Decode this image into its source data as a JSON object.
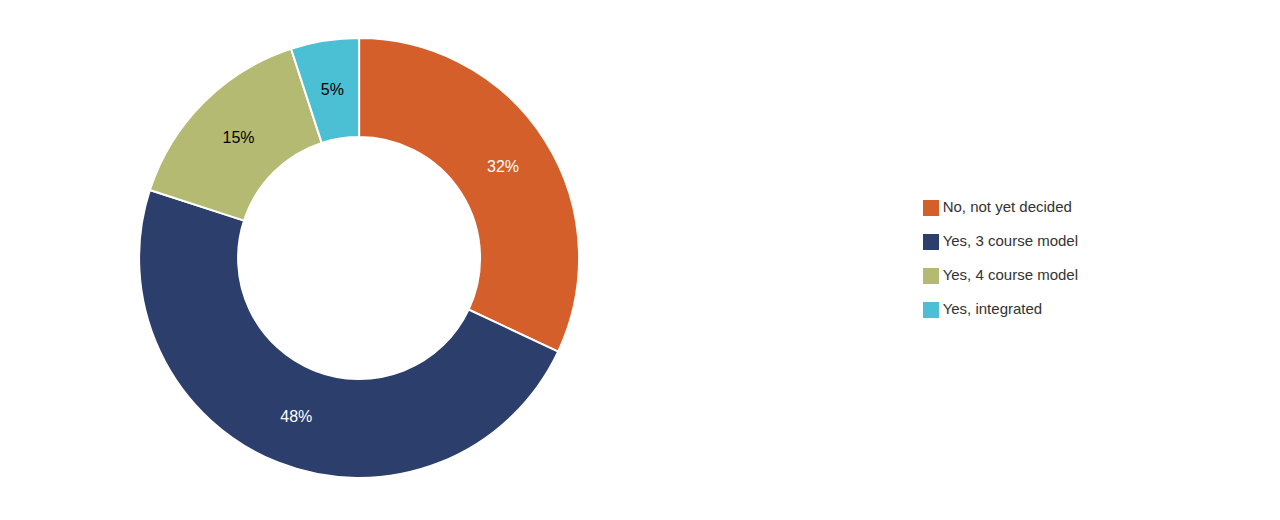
{
  "chart_data": {
    "type": "pie",
    "categories": [
      "No, not yet decided",
      "Yes, 3 course model",
      "Yes, 4 course model",
      "Yes, integrated"
    ],
    "values": [
      32,
      48,
      15,
      5
    ],
    "value_labels": [
      "32%",
      "48%",
      "15%",
      "5%"
    ],
    "colors": [
      "#D45F2A",
      "#2C3E6B",
      "#B5BA72",
      "#4BBFD4"
    ],
    "data_labels": true,
    "legend": "right"
  }
}
